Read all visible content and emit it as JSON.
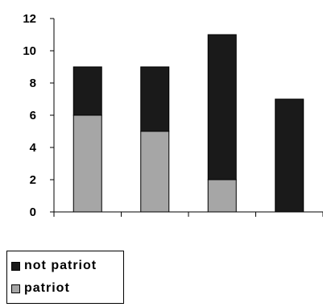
{
  "chart_data": {
    "type": "bar",
    "stacked": true,
    "title": "",
    "xlabel": "",
    "ylabel": "",
    "categories": [
      "",
      "",
      "",
      ""
    ],
    "ylim": [
      0,
      12
    ],
    "yticks": [
      0,
      2,
      4,
      6,
      8,
      10,
      12
    ],
    "grid": false,
    "legend_position": "bottom-left",
    "series": [
      {
        "name": "patriot",
        "values": [
          6,
          5,
          2,
          0
        ],
        "color": "#a6a6a6"
      },
      {
        "name": "not patriot",
        "values": [
          3,
          4,
          9,
          7
        ],
        "color": "#1a1a1a"
      }
    ]
  },
  "legend": {
    "items": [
      {
        "label": "not patriot",
        "color": "#1a1a1a"
      },
      {
        "label": "patriot",
        "color": "#a6a6a6"
      }
    ]
  }
}
